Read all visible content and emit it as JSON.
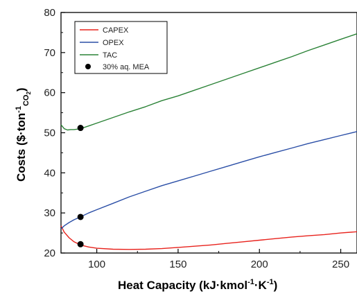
{
  "chart_data": {
    "type": "line",
    "xlabel": {
      "main": "Heat Capacity (kJ·kmol",
      "sup1": "-1",
      "mid": "·K",
      "sup2": "-1",
      "end": ")"
    },
    "ylabel": {
      "main": "Costs ($·ton",
      "sup": "-1",
      "sub": "CO",
      "subsub": "2",
      "end": ")"
    },
    "xlim": [
      78,
      260
    ],
    "ylim": [
      20,
      80
    ],
    "xticks": [
      100,
      150,
      200,
      250
    ],
    "yticks": [
      20,
      30,
      40,
      50,
      60,
      70,
      80
    ],
    "grid": false,
    "legend_position": "top-left",
    "series": [
      {
        "name": "CAPEX",
        "color": "#e8221c",
        "x": [
          78,
          80,
          83,
          86,
          90,
          95,
          100,
          110,
          120,
          130,
          140,
          150,
          160,
          170,
          180,
          190,
          200,
          210,
          220,
          230,
          240,
          250,
          260
        ],
        "y": [
          26.8,
          25.2,
          23.8,
          22.8,
          22.0,
          21.5,
          21.2,
          20.95,
          20.9,
          20.95,
          21.1,
          21.4,
          21.7,
          22.0,
          22.4,
          22.8,
          23.2,
          23.6,
          24.0,
          24.3,
          24.6,
          25.0,
          25.3
        ]
      },
      {
        "name": "OPEX",
        "color": "#2a4ea6",
        "x": [
          78,
          80,
          83,
          86,
          90,
          95,
          100,
          110,
          120,
          130,
          140,
          150,
          160,
          170,
          180,
          190,
          200,
          210,
          220,
          230,
          240,
          250,
          260
        ],
        "y": [
          26.0,
          26.8,
          27.6,
          28.3,
          29.0,
          30.0,
          30.8,
          32.4,
          34.0,
          35.4,
          36.8,
          38.0,
          39.2,
          40.4,
          41.6,
          42.8,
          44.0,
          45.1,
          46.2,
          47.3,
          48.3,
          49.3,
          50.3
        ]
      },
      {
        "name": "TAC",
        "color": "#2a8236",
        "x": [
          78,
          80,
          82,
          84,
          86,
          88,
          90,
          95,
          100,
          110,
          120,
          130,
          140,
          150,
          160,
          170,
          180,
          190,
          200,
          210,
          220,
          230,
          240,
          250,
          260
        ],
        "y": [
          52.0,
          51.0,
          50.7,
          50.8,
          50.8,
          50.9,
          51.0,
          51.7,
          52.4,
          53.8,
          55.2,
          56.5,
          58.0,
          59.2,
          60.6,
          62.0,
          63.4,
          64.8,
          66.2,
          67.6,
          69.0,
          70.5,
          71.9,
          73.3,
          74.7
        ]
      }
    ],
    "markers": {
      "name": "30% aq. MEA",
      "color": "#000000",
      "points": [
        {
          "x": 90,
          "y": 22.2
        },
        {
          "x": 90,
          "y": 29.0
        },
        {
          "x": 90,
          "y": 51.2
        }
      ]
    }
  }
}
